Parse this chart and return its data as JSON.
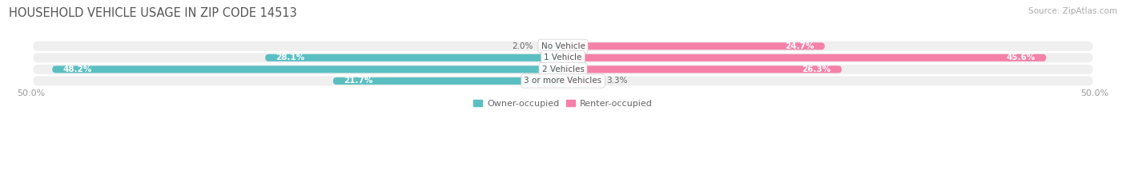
{
  "title": "HOUSEHOLD VEHICLE USAGE IN ZIP CODE 14513",
  "source": "Source: ZipAtlas.com",
  "categories": [
    "No Vehicle",
    "1 Vehicle",
    "2 Vehicles",
    "3 or more Vehicles"
  ],
  "owner_values": [
    2.0,
    28.1,
    48.2,
    21.7
  ],
  "renter_values": [
    24.7,
    45.6,
    26.3,
    3.3
  ],
  "owner_color": "#5bbfc2",
  "renter_color": "#f580a8",
  "bar_bg_color": "#efefef",
  "axis_max": 50.0,
  "axis_min": -50.0,
  "owner_label": "Owner-occupied",
  "renter_label": "Renter-occupied",
  "title_fontsize": 10.5,
  "source_fontsize": 7.5,
  "bar_height": 0.62,
  "background_color": "#ffffff",
  "bar_gap": 0.38,
  "n_bars": 4
}
